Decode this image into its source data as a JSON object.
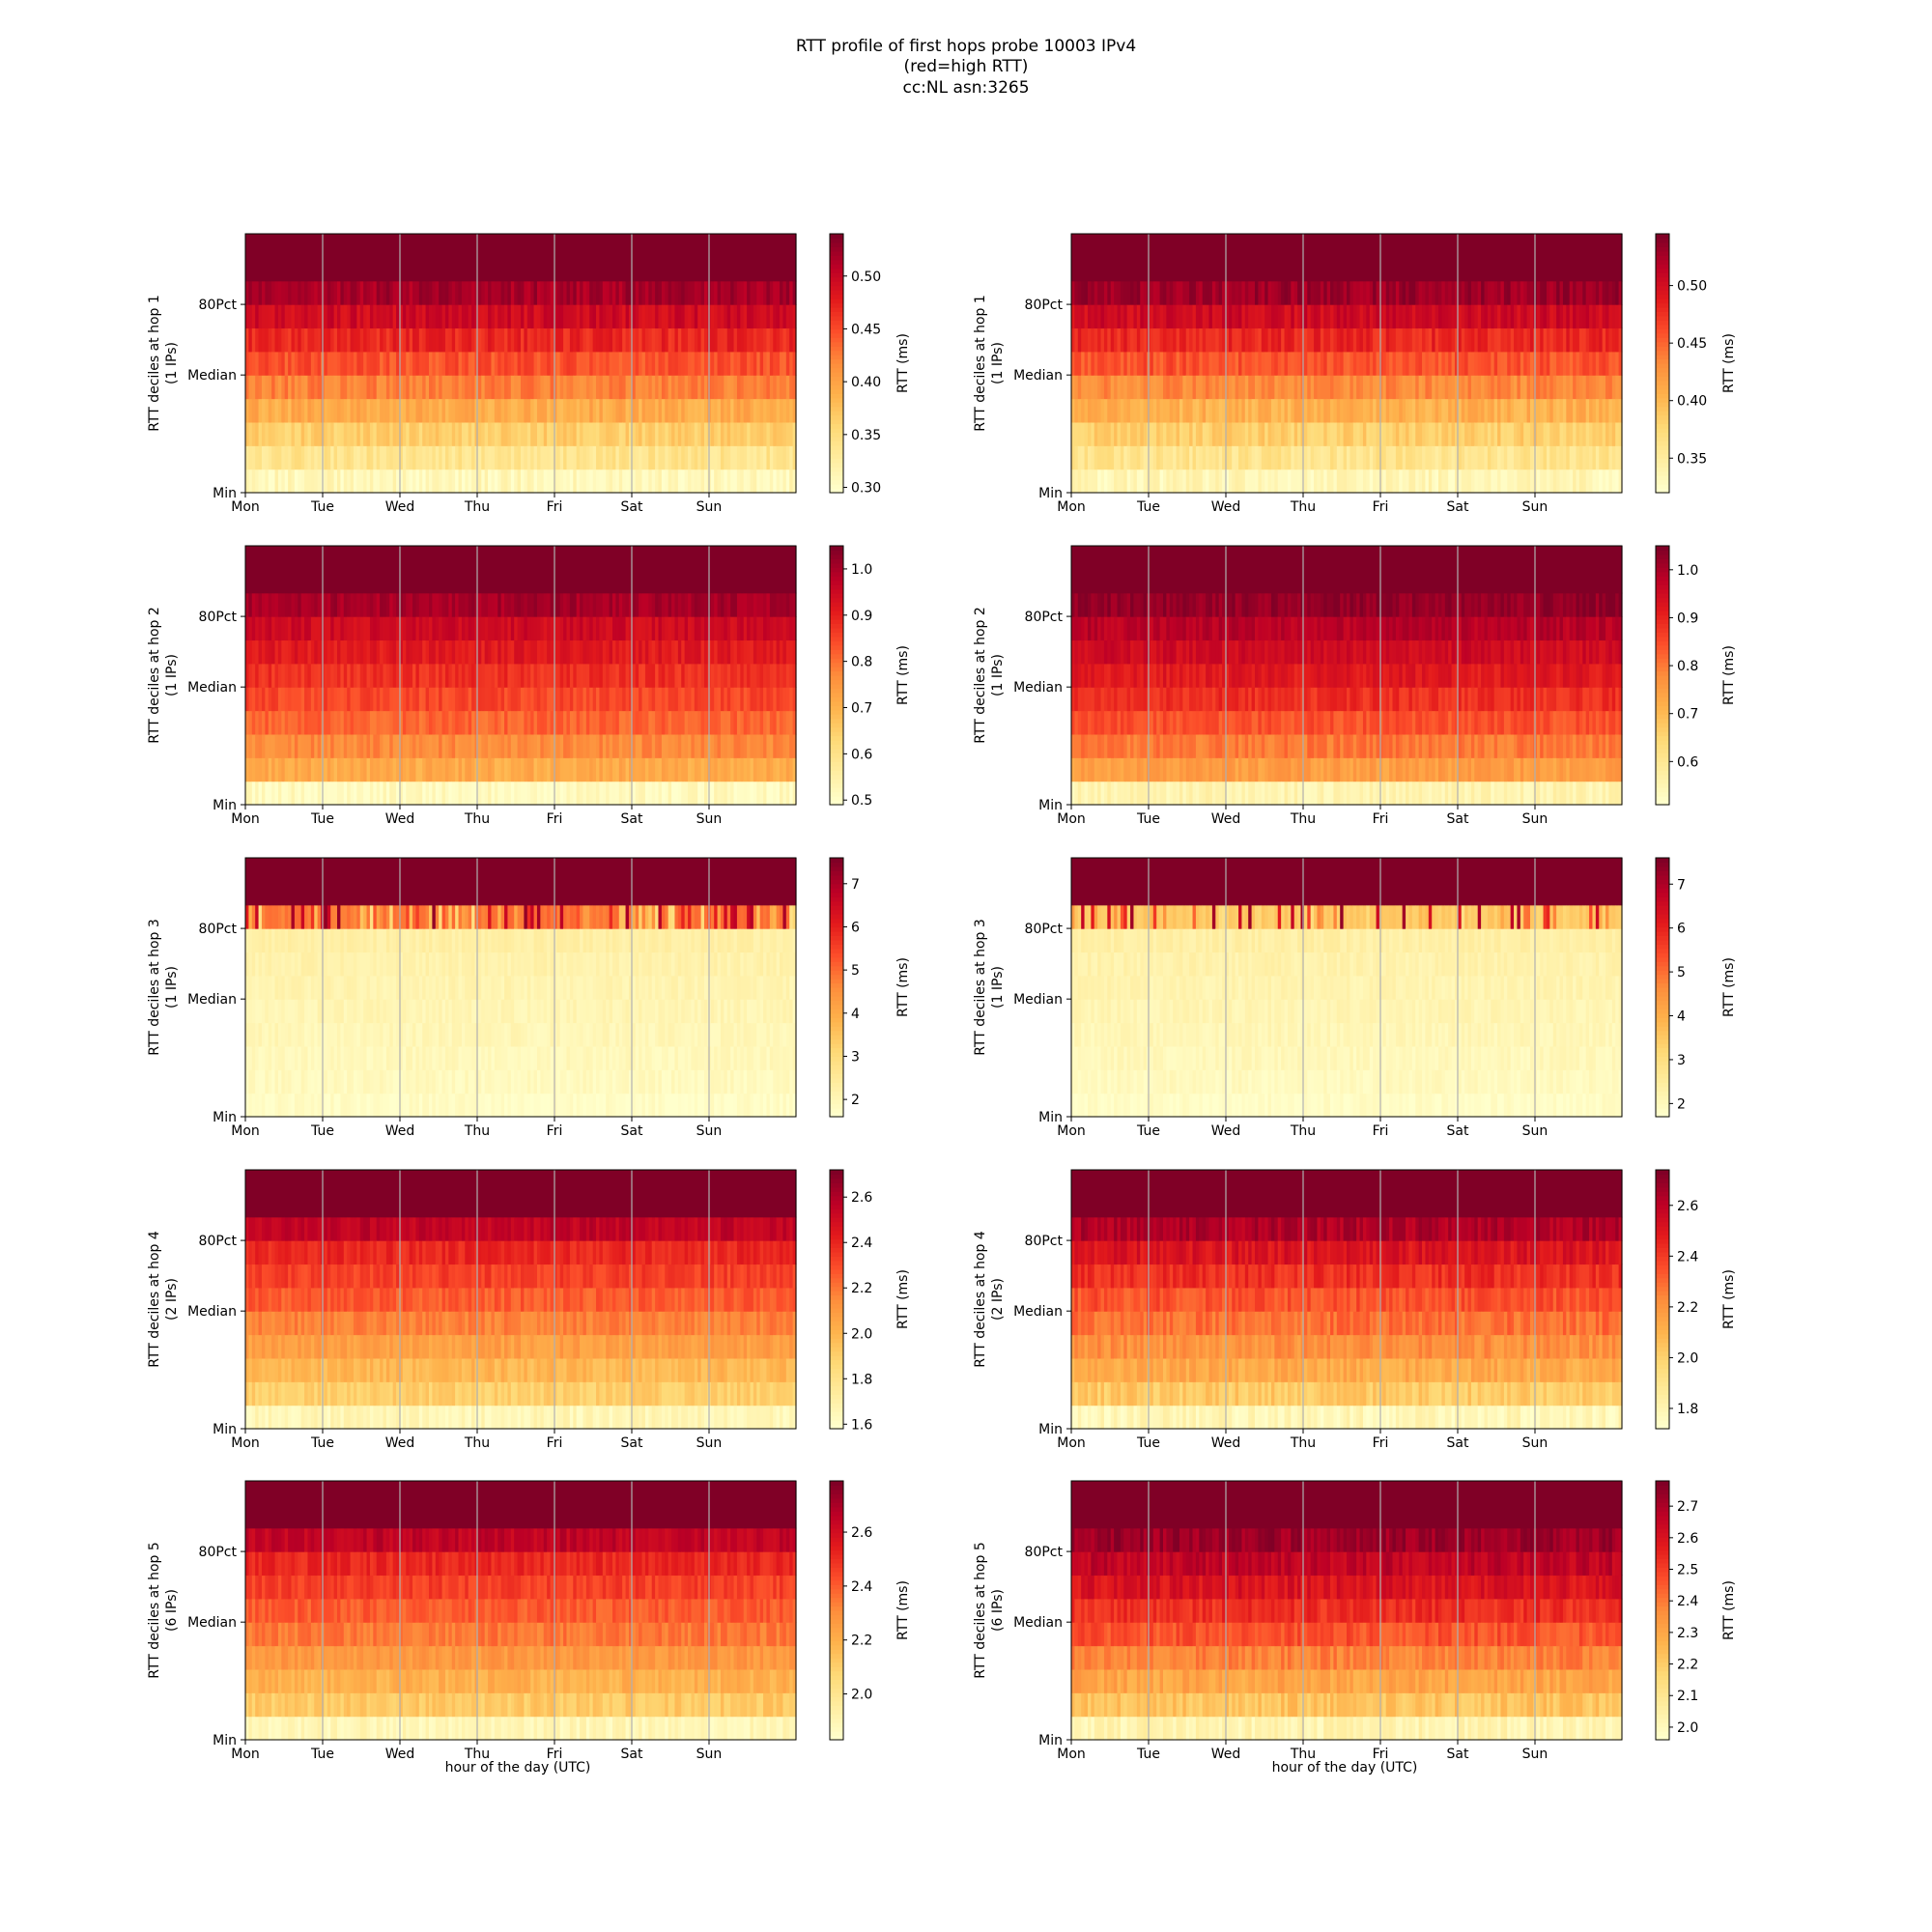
{
  "figure": {
    "title_lines": [
      "RTT profile of first hops probe 10003 IPv4",
      "(red=high RTT)",
      "cc:NL asn:3265"
    ],
    "xlabel": "hour of the day (UTC)",
    "colormap": [
      "#ffffcc",
      "#ffeda0",
      "#fed976",
      "#feb24c",
      "#fd8d3c",
      "#fc4e2a",
      "#e31a1c",
      "#bd0026",
      "#800026"
    ]
  },
  "chart_data": [
    {
      "type": "heatmap",
      "column": "left",
      "hop": 1,
      "ylabel": "RTT deciles at hop 1",
      "ylabel2": "(1 IPs)",
      "xticks": [
        "Mon",
        "Tue",
        "Wed",
        "Thu",
        "Fri",
        "Sat",
        "Sun"
      ],
      "yticks": [
        "Min",
        "Median",
        "80Pct"
      ],
      "cbar_label": "RTT (ms)",
      "cbar_ticks": [
        0.3,
        0.35,
        0.4,
        0.45,
        0.5
      ],
      "cbar_range": [
        0.295,
        0.54
      ],
      "decile_levels": [
        0.05,
        0.18,
        0.28,
        0.4,
        0.52,
        0.62,
        0.72,
        0.82,
        0.92,
        1.0
      ],
      "noise": 0.06,
      "spikes": 0
    },
    {
      "type": "heatmap",
      "column": "right",
      "hop": 1,
      "ylabel": "RTT deciles at hop 1",
      "ylabel2": "(1 IPs)",
      "xticks": [
        "Mon",
        "Tue",
        "Wed",
        "Thu",
        "Fri",
        "Sat",
        "Sun"
      ],
      "yticks": [
        "Min",
        "Median",
        "80Pct"
      ],
      "cbar_label": "RTT (ms)",
      "cbar_ticks": [
        0.35,
        0.4,
        0.45,
        0.5
      ],
      "cbar_range": [
        0.32,
        0.545
      ],
      "decile_levels": [
        0.06,
        0.18,
        0.28,
        0.38,
        0.5,
        0.62,
        0.72,
        0.82,
        0.94,
        1.0
      ],
      "noise": 0.06,
      "spikes": 0
    },
    {
      "type": "heatmap",
      "column": "left",
      "hop": 2,
      "ylabel": "RTT deciles at hop 2",
      "ylabel2": "(1 IPs)",
      "xticks": [
        "Mon",
        "Tue",
        "Wed",
        "Thu",
        "Fri",
        "Sat",
        "Sun"
      ],
      "yticks": [
        "Min",
        "Median",
        "80Pct"
      ],
      "cbar_label": "RTT (ms)",
      "cbar_ticks": [
        0.5,
        0.6,
        0.7,
        0.8,
        0.9,
        1.0
      ],
      "cbar_range": [
        0.49,
        1.05
      ],
      "decile_levels": [
        0.04,
        0.4,
        0.5,
        0.58,
        0.64,
        0.7,
        0.76,
        0.82,
        0.92,
        1.0
      ],
      "noise": 0.05,
      "spikes": 0
    },
    {
      "type": "heatmap",
      "column": "right",
      "hop": 2,
      "ylabel": "RTT deciles at hop 2",
      "ylabel2": "(1 IPs)",
      "xticks": [
        "Mon",
        "Tue",
        "Wed",
        "Thu",
        "Fri",
        "Sat",
        "Sun"
      ],
      "yticks": [
        "Min",
        "Median",
        "80Pct"
      ],
      "cbar_label": "RTT (ms)",
      "cbar_ticks": [
        0.6,
        0.7,
        0.8,
        0.9,
        1.0
      ],
      "cbar_range": [
        0.51,
        1.05
      ],
      "decile_levels": [
        0.08,
        0.44,
        0.54,
        0.62,
        0.7,
        0.76,
        0.82,
        0.88,
        0.96,
        1.0
      ],
      "noise": 0.05,
      "spikes": 0
    },
    {
      "type": "heatmap",
      "column": "left",
      "hop": 3,
      "ylabel": "RTT deciles at hop 3",
      "ylabel2": "(1 IPs)",
      "xticks": [
        "Mon",
        "Tue",
        "Wed",
        "Thu",
        "Fri",
        "Sat",
        "Sun"
      ],
      "yticks": [
        "Min",
        "Median",
        "80Pct"
      ],
      "cbar_label": "RTT (ms)",
      "cbar_ticks": [
        2,
        3,
        4,
        5,
        6,
        7
      ],
      "cbar_range": [
        1.6,
        7.6
      ],
      "decile_levels": [
        0.02,
        0.04,
        0.05,
        0.06,
        0.07,
        0.08,
        0.09,
        0.11,
        0.55,
        1.0
      ],
      "noise": 0.03,
      "spikes": 0.5
    },
    {
      "type": "heatmap",
      "column": "right",
      "hop": 3,
      "ylabel": "RTT deciles at hop 3",
      "ylabel2": "(1 IPs)",
      "xticks": [
        "Mon",
        "Tue",
        "Wed",
        "Thu",
        "Fri",
        "Sat",
        "Sun"
      ],
      "yticks": [
        "Min",
        "Median",
        "80Pct"
      ],
      "cbar_label": "RTT (ms)",
      "cbar_ticks": [
        2,
        3,
        4,
        5,
        6,
        7
      ],
      "cbar_range": [
        1.7,
        7.6
      ],
      "decile_levels": [
        0.02,
        0.04,
        0.05,
        0.06,
        0.07,
        0.08,
        0.09,
        0.11,
        0.3,
        1.0
      ],
      "noise": 0.03,
      "spikes": 0.35
    },
    {
      "type": "heatmap",
      "column": "left",
      "hop": 4,
      "ylabel": "RTT deciles at hop 4",
      "ylabel2": "(2 IPs)",
      "xticks": [
        "Mon",
        "Tue",
        "Wed",
        "Thu",
        "Fri",
        "Sat",
        "Sun"
      ],
      "yticks": [
        "Min",
        "Median",
        "80Pct"
      ],
      "cbar_label": "RTT (ms)",
      "cbar_ticks": [
        1.6,
        1.8,
        2.0,
        2.2,
        2.4,
        2.6
      ],
      "cbar_range": [
        1.58,
        2.72
      ],
      "decile_levels": [
        0.06,
        0.28,
        0.36,
        0.44,
        0.52,
        0.6,
        0.66,
        0.72,
        0.86,
        1.0
      ],
      "noise": 0.05,
      "spikes": 0
    },
    {
      "type": "heatmap",
      "column": "right",
      "hop": 4,
      "ylabel": "RTT deciles at hop 4",
      "ylabel2": "(2 IPs)",
      "xticks": [
        "Mon",
        "Tue",
        "Wed",
        "Thu",
        "Fri",
        "Sat",
        "Sun"
      ],
      "yticks": [
        "Min",
        "Median",
        "80Pct"
      ],
      "cbar_label": "RTT (ms)",
      "cbar_ticks": [
        1.8,
        2.0,
        2.2,
        2.4,
        2.6
      ],
      "cbar_range": [
        1.72,
        2.74
      ],
      "decile_levels": [
        0.06,
        0.3,
        0.4,
        0.48,
        0.56,
        0.62,
        0.7,
        0.78,
        0.9,
        1.0
      ],
      "noise": 0.06,
      "spikes": 0
    },
    {
      "type": "heatmap",
      "column": "left",
      "hop": 5,
      "ylabel": "RTT deciles at hop 5",
      "ylabel2": "(6 IPs)",
      "xticks": [
        "Mon",
        "Tue",
        "Wed",
        "Thu",
        "Fri",
        "Sat",
        "Sun"
      ],
      "yticks": [
        "Min",
        "Median",
        "80Pct"
      ],
      "cbar_label": "RTT (ms)",
      "cbar_ticks": [
        2.0,
        2.2,
        2.4,
        2.6
      ],
      "cbar_range": [
        1.83,
        2.79
      ],
      "decile_levels": [
        0.06,
        0.3,
        0.38,
        0.46,
        0.54,
        0.6,
        0.66,
        0.72,
        0.86,
        1.0
      ],
      "noise": 0.05,
      "spikes": 0
    },
    {
      "type": "heatmap",
      "column": "right",
      "hop": 5,
      "ylabel": "RTT deciles at hop 5",
      "ylabel2": "(6 IPs)",
      "xticks": [
        "Mon",
        "Tue",
        "Wed",
        "Thu",
        "Fri",
        "Sat",
        "Sun"
      ],
      "yticks": [
        "Min",
        "Median",
        "80Pct"
      ],
      "cbar_label": "RTT (ms)",
      "cbar_ticks": [
        2.0,
        2.1,
        2.2,
        2.3,
        2.4,
        2.5,
        2.6,
        2.7
      ],
      "cbar_range": [
        1.96,
        2.78
      ],
      "decile_levels": [
        0.08,
        0.32,
        0.42,
        0.52,
        0.62,
        0.7,
        0.78,
        0.86,
        0.94,
        1.0
      ],
      "noise": 0.06,
      "spikes": 0
    }
  ]
}
